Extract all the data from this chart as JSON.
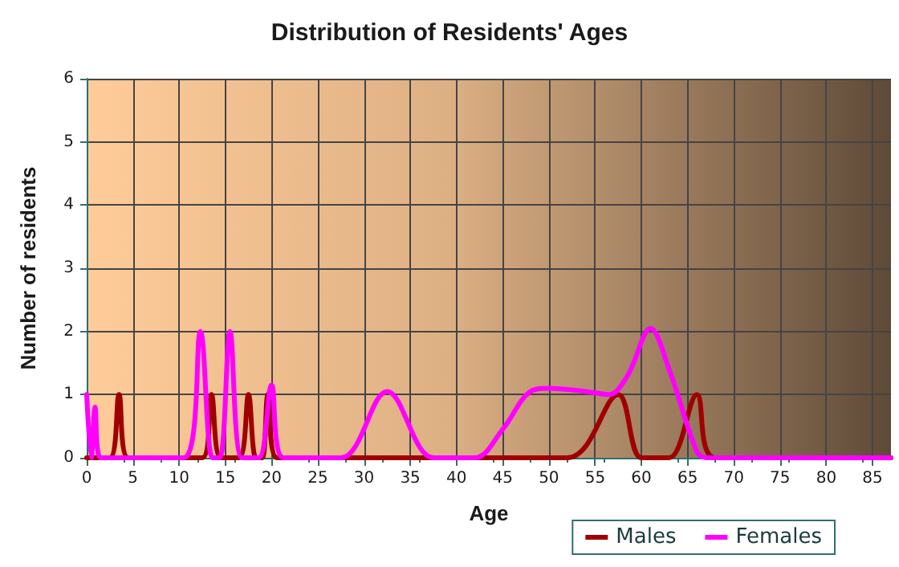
{
  "chart_data": {
    "type": "line",
    "title": "Distribution of Residents' Ages",
    "xlabel": "Age",
    "ylabel": "Number of residents",
    "xlim": [
      0,
      87
    ],
    "xticks": [
      0,
      5,
      10,
      15,
      20,
      25,
      30,
      35,
      40,
      45,
      50,
      55,
      60,
      65,
      70,
      75,
      80,
      85
    ],
    "ylim": [
      0,
      6
    ],
    "yticks": [
      0,
      1,
      2,
      3,
      4,
      5,
      6
    ],
    "grid": true,
    "legend": "bottom right",
    "marker": "none",
    "series": [
      {
        "name": "Males",
        "color": "#a00000",
        "x": [
          0,
          2.5,
          3.5,
          4.5,
          12.5,
          13.5,
          14.5,
          16.5,
          17.5,
          18.3,
          19,
          19.6,
          20.6,
          52,
          57.5,
          60,
          63,
          66,
          68,
          87
        ],
        "values": [
          0,
          0,
          1,
          0,
          0,
          1,
          0,
          0,
          1,
          0,
          0,
          1,
          0,
          0,
          1,
          0,
          0,
          1,
          0,
          0
        ]
      },
      {
        "name": "Females",
        "color": "#ff00ff",
        "x": [
          0,
          0.5,
          0.9,
          1.5,
          10.5,
          12.3,
          13.6,
          14.4,
          15.5,
          16.8,
          18.6,
          20,
          21.3,
          27.5,
          32.5,
          37.5,
          42,
          45,
          48,
          50,
          54,
          56.5,
          58.5,
          61,
          63,
          66,
          67,
          87
        ],
        "values": [
          1,
          0,
          0.8,
          0,
          0,
          2,
          0,
          0,
          2,
          0,
          0,
          1.15,
          0,
          0,
          1.05,
          0,
          0,
          0.45,
          1.05,
          1.1,
          1.05,
          1,
          1.3,
          2.05,
          1.4,
          0.1,
          0,
          0
        ]
      }
    ]
  }
}
